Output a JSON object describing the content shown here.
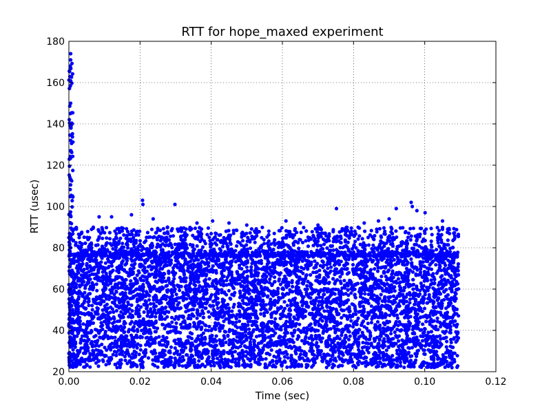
{
  "chart_data": {
    "type": "scatter",
    "title": "RTT for hope_maxed experiment",
    "xlabel": "Time (sec)",
    "ylabel": "RTT (usec)",
    "xlim": [
      0.0,
      0.12
    ],
    "ylim": [
      20,
      180
    ],
    "x_ticks": [
      "0.00",
      "0.02",
      "0.04",
      "0.06",
      "0.08",
      "0.10",
      "0.12"
    ],
    "y_ticks": [
      "20",
      "40",
      "60",
      "80",
      "100",
      "120",
      "140",
      "160",
      "180"
    ],
    "grid": true,
    "marker_color": "#0000ff",
    "series": [
      {
        "x_range": [
          0.0,
          0.1095
        ],
        "main_band_y": [
          22,
          90
        ],
        "startup_spike": {
          "x_range": [
            0.0,
            0.0012
          ],
          "y_range": [
            22,
            174
          ]
        },
        "outliers": [
          {
            "x": 0.0005,
            "y": 174
          },
          {
            "x": 0.0005,
            "y": 171
          },
          {
            "x": 0.0004,
            "y": 168
          },
          {
            "x": 0.0005,
            "y": 150
          },
          {
            "x": 0.0004,
            "y": 145
          },
          {
            "x": 0.0006,
            "y": 138
          },
          {
            "x": 0.0005,
            "y": 132
          },
          {
            "x": 0.0004,
            "y": 127
          },
          {
            "x": 0.0207,
            "y": 103
          },
          {
            "x": 0.0208,
            "y": 101
          },
          {
            "x": 0.0298,
            "y": 101
          },
          {
            "x": 0.0962,
            "y": 102
          },
          {
            "x": 0.0965,
            "y": 100
          },
          {
            "x": 0.092,
            "y": 99
          },
          {
            "x": 0.0752,
            "y": 99
          },
          {
            "x": 0.0978,
            "y": 98
          },
          {
            "x": 0.1001,
            "y": 97
          },
          {
            "x": 0.0085,
            "y": 95
          },
          {
            "x": 0.012,
            "y": 95
          },
          {
            "x": 0.0176,
            "y": 96
          },
          {
            "x": 0.0237,
            "y": 94
          },
          {
            "x": 0.036,
            "y": 92
          },
          {
            "x": 0.0404,
            "y": 93
          },
          {
            "x": 0.045,
            "y": 92
          },
          {
            "x": 0.05,
            "y": 91
          },
          {
            "x": 0.061,
            "y": 93
          },
          {
            "x": 0.065,
            "y": 92
          },
          {
            "x": 0.07,
            "y": 91
          },
          {
            "x": 0.083,
            "y": 92
          },
          {
            "x": 0.087,
            "y": 93
          },
          {
            "x": 0.09,
            "y": 94
          },
          {
            "x": 0.105,
            "y": 93
          }
        ],
        "gaps_y": [
          31,
          38,
          45
        ]
      }
    ]
  }
}
